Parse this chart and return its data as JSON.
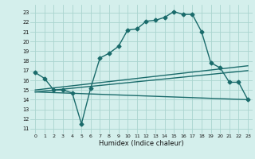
{
  "xlabel": "Humidex (Indice chaleur)",
  "bg_color": "#d4efec",
  "grid_color": "#aad4cf",
  "line_color": "#1a6b6b",
  "xlim": [
    -0.5,
    23.5
  ],
  "ylim": [
    10.5,
    23.8
  ],
  "xticks": [
    0,
    1,
    2,
    3,
    4,
    5,
    6,
    7,
    8,
    9,
    10,
    11,
    12,
    13,
    14,
    15,
    16,
    17,
    18,
    19,
    20,
    21,
    22,
    23
  ],
  "yticks": [
    11,
    12,
    13,
    14,
    15,
    16,
    17,
    18,
    19,
    20,
    21,
    22,
    23
  ],
  "main_line": [
    [
      0,
      16.8
    ],
    [
      1,
      16.2
    ],
    [
      2,
      15.0
    ],
    [
      3,
      15.0
    ],
    [
      4,
      14.7
    ],
    [
      5,
      11.5
    ],
    [
      6,
      15.2
    ],
    [
      7,
      18.3
    ],
    [
      8,
      18.8
    ],
    [
      9,
      19.5
    ],
    [
      10,
      21.2
    ],
    [
      11,
      21.3
    ],
    [
      12,
      22.1
    ],
    [
      13,
      22.2
    ],
    [
      14,
      22.5
    ],
    [
      15,
      23.1
    ],
    [
      16,
      22.8
    ],
    [
      17,
      22.8
    ],
    [
      18,
      21.0
    ],
    [
      19,
      17.8
    ],
    [
      20,
      17.3
    ],
    [
      21,
      15.8
    ],
    [
      22,
      15.8
    ],
    [
      23,
      14.0
    ]
  ],
  "line2": [
    [
      0,
      15.0
    ],
    [
      23,
      17.5
    ]
  ],
  "line3": [
    [
      0,
      14.8
    ],
    [
      23,
      17.0
    ]
  ],
  "line4": [
    [
      0,
      14.8
    ],
    [
      23,
      14.0
    ]
  ],
  "marker_size": 2.5,
  "linewidth": 1.0
}
